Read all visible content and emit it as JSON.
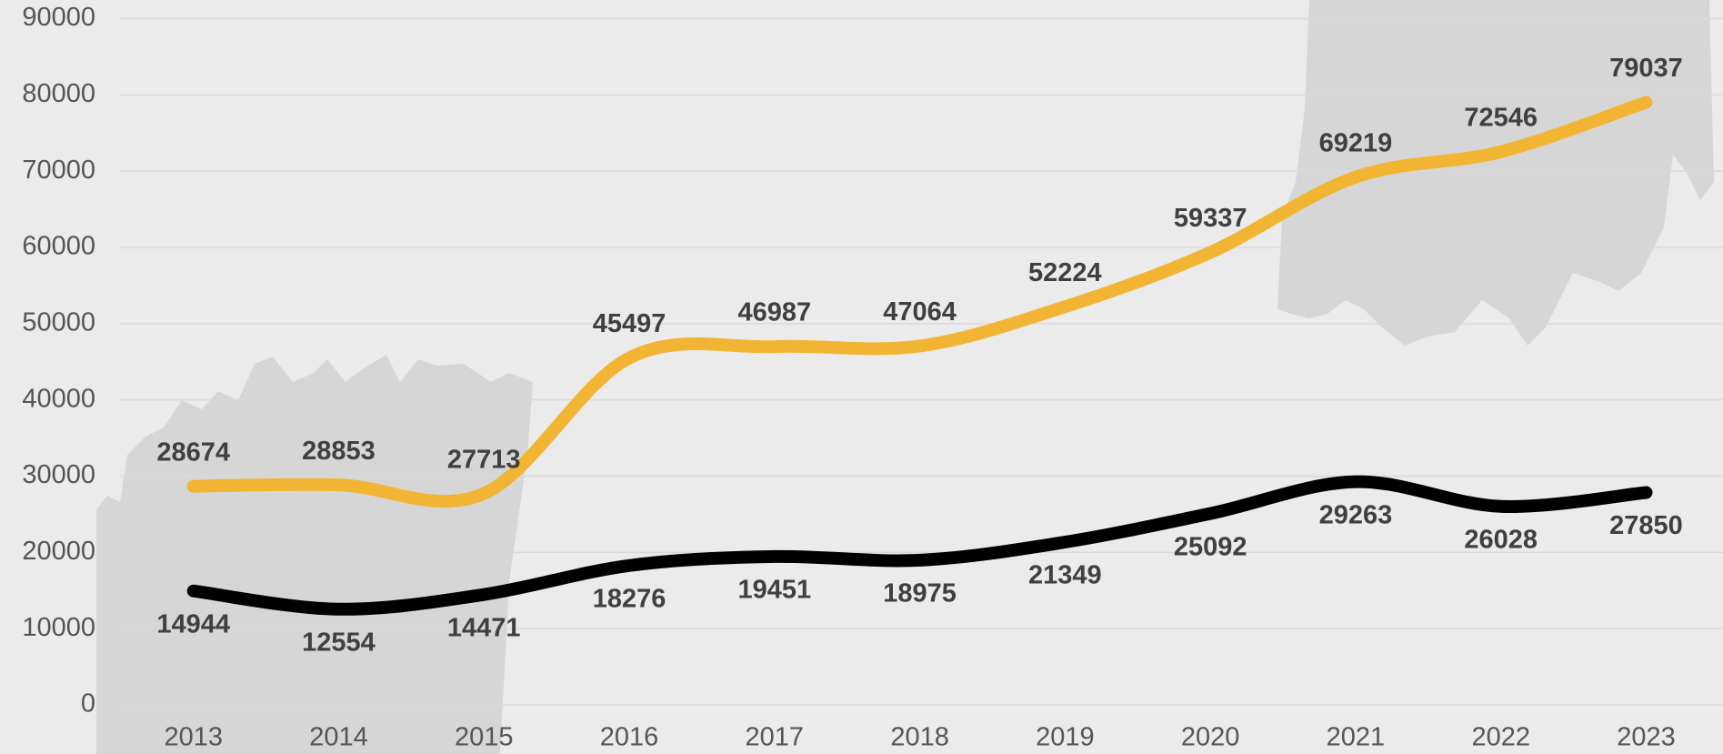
{
  "chart_data": {
    "type": "line",
    "categories": [
      "2013",
      "2014",
      "2015",
      "2016",
      "2017",
      "2018",
      "2019",
      "2020",
      "2021",
      "2022",
      "2023"
    ],
    "series": [
      {
        "color": "#f2b533",
        "values": [
          28674,
          28853,
          27713,
          45497,
          46987,
          47064,
          52224,
          59337,
          69219,
          72546,
          79037
        ]
      },
      {
        "color": "#000000",
        "values": [
          14944,
          12554,
          14471,
          18276,
          19451,
          18975,
          21349,
          25092,
          29263,
          26028,
          27850
        ]
      }
    ],
    "ylim": [
      0,
      90000
    ],
    "yticks": [
      0,
      10000,
      20000,
      30000,
      40000,
      50000,
      60000,
      70000,
      80000,
      90000
    ],
    "grid": true,
    "smooth": true
  }
}
